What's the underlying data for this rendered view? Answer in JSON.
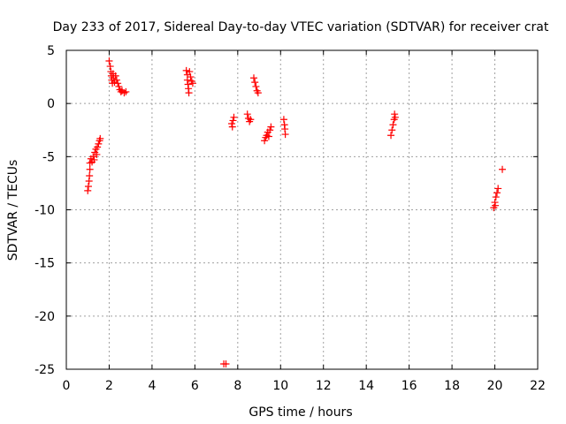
{
  "chart_data": {
    "type": "scatter",
    "title": "Day 233 of 2017, Sidereal Day-to-day VTEC variation (SDTVAR) for receiver crat",
    "xlabel": "GPS time / hours",
    "ylabel": "SDTVAR / TECUs",
    "xlim": [
      0,
      22
    ],
    "ylim": [
      -25,
      5
    ],
    "xticks": [
      0,
      2,
      4,
      6,
      8,
      10,
      12,
      14,
      16,
      18,
      20,
      22
    ],
    "yticks": [
      5,
      0,
      -5,
      -10,
      -15,
      -20,
      -25
    ],
    "grid": true,
    "marker": "+",
    "color": "#ff0000",
    "points": [
      [
        1.0,
        -8.2
      ],
      [
        1.03,
        -7.8
      ],
      [
        1.06,
        -7.3
      ],
      [
        1.08,
        -6.8
      ],
      [
        1.1,
        -6.2
      ],
      [
        1.1,
        -5.6
      ],
      [
        1.15,
        -5.2
      ],
      [
        1.2,
        -5.5
      ],
      [
        1.25,
        -5.0
      ],
      [
        1.3,
        -5.3
      ],
      [
        1.33,
        -4.6
      ],
      [
        1.38,
        -4.3
      ],
      [
        1.42,
        -4.8
      ],
      [
        1.45,
        -4.1
      ],
      [
        1.5,
        -3.8
      ],
      [
        1.55,
        -3.5
      ],
      [
        1.58,
        -3.3
      ],
      [
        2.0,
        4.0
      ],
      [
        2.05,
        3.5
      ],
      [
        2.08,
        3.0
      ],
      [
        2.1,
        2.6
      ],
      [
        2.12,
        2.2
      ],
      [
        2.15,
        1.9
      ],
      [
        2.18,
        2.8
      ],
      [
        2.2,
        2.4
      ],
      [
        2.25,
        2.0
      ],
      [
        2.3,
        2.6
      ],
      [
        2.35,
        2.2
      ],
      [
        2.4,
        1.9
      ],
      [
        2.45,
        1.6
      ],
      [
        2.5,
        1.3
      ],
      [
        2.55,
        1.1
      ],
      [
        2.6,
        1.2
      ],
      [
        2.7,
        1.0
      ],
      [
        2.78,
        1.1
      ],
      [
        5.6,
        3.1
      ],
      [
        5.65,
        2.7
      ],
      [
        5.65,
        2.2
      ],
      [
        5.68,
        1.8
      ],
      [
        5.7,
        1.4
      ],
      [
        5.72,
        1.0
      ],
      [
        5.75,
        3.0
      ],
      [
        5.8,
        2.5
      ],
      [
        5.85,
        2.1
      ],
      [
        5.9,
        1.9
      ],
      [
        7.35,
        -24.5
      ],
      [
        7.45,
        -24.5
      ],
      [
        7.72,
        -1.9
      ],
      [
        7.75,
        -2.2
      ],
      [
        7.78,
        -1.6
      ],
      [
        7.82,
        -1.3
      ],
      [
        8.45,
        -1.0
      ],
      [
        8.5,
        -1.4
      ],
      [
        8.55,
        -1.7
      ],
      [
        8.6,
        -1.5
      ],
      [
        8.75,
        2.4
      ],
      [
        8.8,
        2.0
      ],
      [
        8.85,
        1.6
      ],
      [
        8.9,
        1.2
      ],
      [
        8.95,
        1.0
      ],
      [
        9.25,
        -3.5
      ],
      [
        9.3,
        -3.2
      ],
      [
        9.35,
        -3.0
      ],
      [
        9.4,
        -2.7
      ],
      [
        9.45,
        -3.1
      ],
      [
        9.5,
        -2.5
      ],
      [
        9.55,
        -2.2
      ],
      [
        10.15,
        -1.5
      ],
      [
        10.18,
        -2.0
      ],
      [
        10.2,
        -2.4
      ],
      [
        10.22,
        -2.9
      ],
      [
        15.15,
        -3.0
      ],
      [
        15.2,
        -2.5
      ],
      [
        15.25,
        -2.0
      ],
      [
        15.3,
        -1.5
      ],
      [
        15.32,
        -1.0
      ],
      [
        15.35,
        -1.3
      ],
      [
        19.95,
        -9.8
      ],
      [
        20.0,
        -9.3
      ],
      [
        20.02,
        -9.6
      ],
      [
        20.05,
        -8.8
      ],
      [
        20.1,
        -8.4
      ],
      [
        20.15,
        -8.0
      ],
      [
        20.35,
        -6.2
      ]
    ]
  }
}
